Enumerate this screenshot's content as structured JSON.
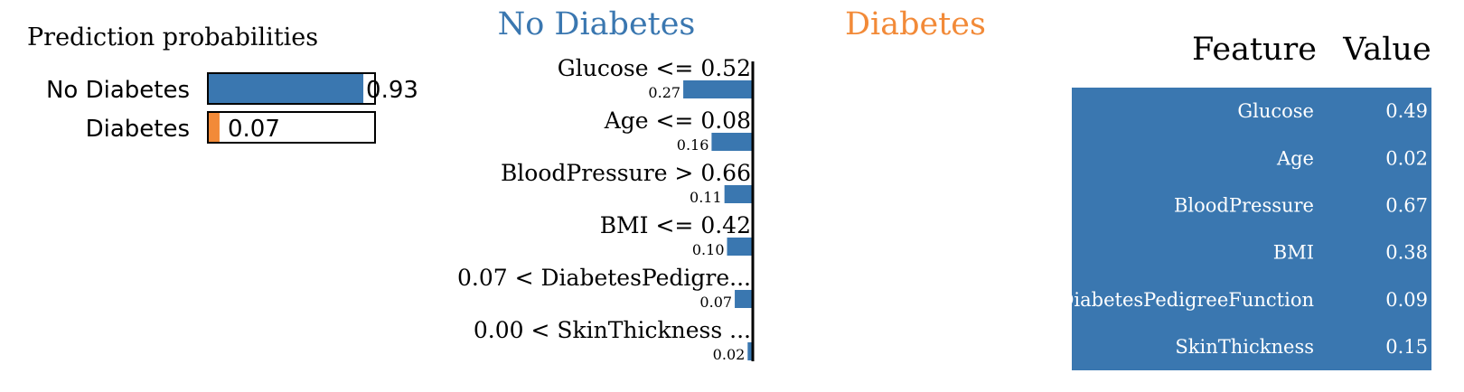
{
  "colors": {
    "negative": "#3a77b0",
    "positive": "#f28a38",
    "text": "#000000",
    "table_text": "#ffffff",
    "axis": "#000000"
  },
  "chart_data": [
    {
      "type": "bar",
      "title": "Prediction probabilities",
      "categories": [
        "No Diabetes",
        "Diabetes"
      ],
      "values": [
        0.93,
        0.07
      ],
      "value_labels": [
        "0.93",
        "0.07"
      ],
      "xlim": [
        0,
        1
      ],
      "bar_colors": [
        "#3a77b0",
        "#f28a38"
      ]
    },
    {
      "type": "bar",
      "orientation": "horizontal",
      "class_labels": {
        "left": "No Diabetes",
        "right": "Diabetes"
      },
      "categories": [
        "Glucose <= 0.52",
        "Age <= 0.08",
        "BloodPressure > 0.66",
        "BMI <= 0.42",
        "0.07 < DiabetesPedigre...",
        "0.00 < SkinThickness ..."
      ],
      "values": [
        0.27,
        0.16,
        0.11,
        0.1,
        0.07,
        0.02
      ],
      "value_labels": [
        "0.27",
        "0.16",
        "0.11",
        "0.10",
        "0.07",
        "0.02"
      ],
      "side": [
        "left",
        "left",
        "left",
        "left",
        "left",
        "left"
      ]
    },
    {
      "type": "table",
      "columns": [
        "Feature",
        "Value"
      ],
      "rows": [
        {
          "feature": "Glucose",
          "value": "0.49"
        },
        {
          "feature": "Age",
          "value": "0.02"
        },
        {
          "feature": "BloodPressure",
          "value": "0.67"
        },
        {
          "feature": "BMI",
          "value": "0.38"
        },
        {
          "feature": "DiabetesPedigreeFunction",
          "value": "0.09"
        },
        {
          "feature": "SkinThickness",
          "value": "0.15"
        }
      ]
    }
  ]
}
